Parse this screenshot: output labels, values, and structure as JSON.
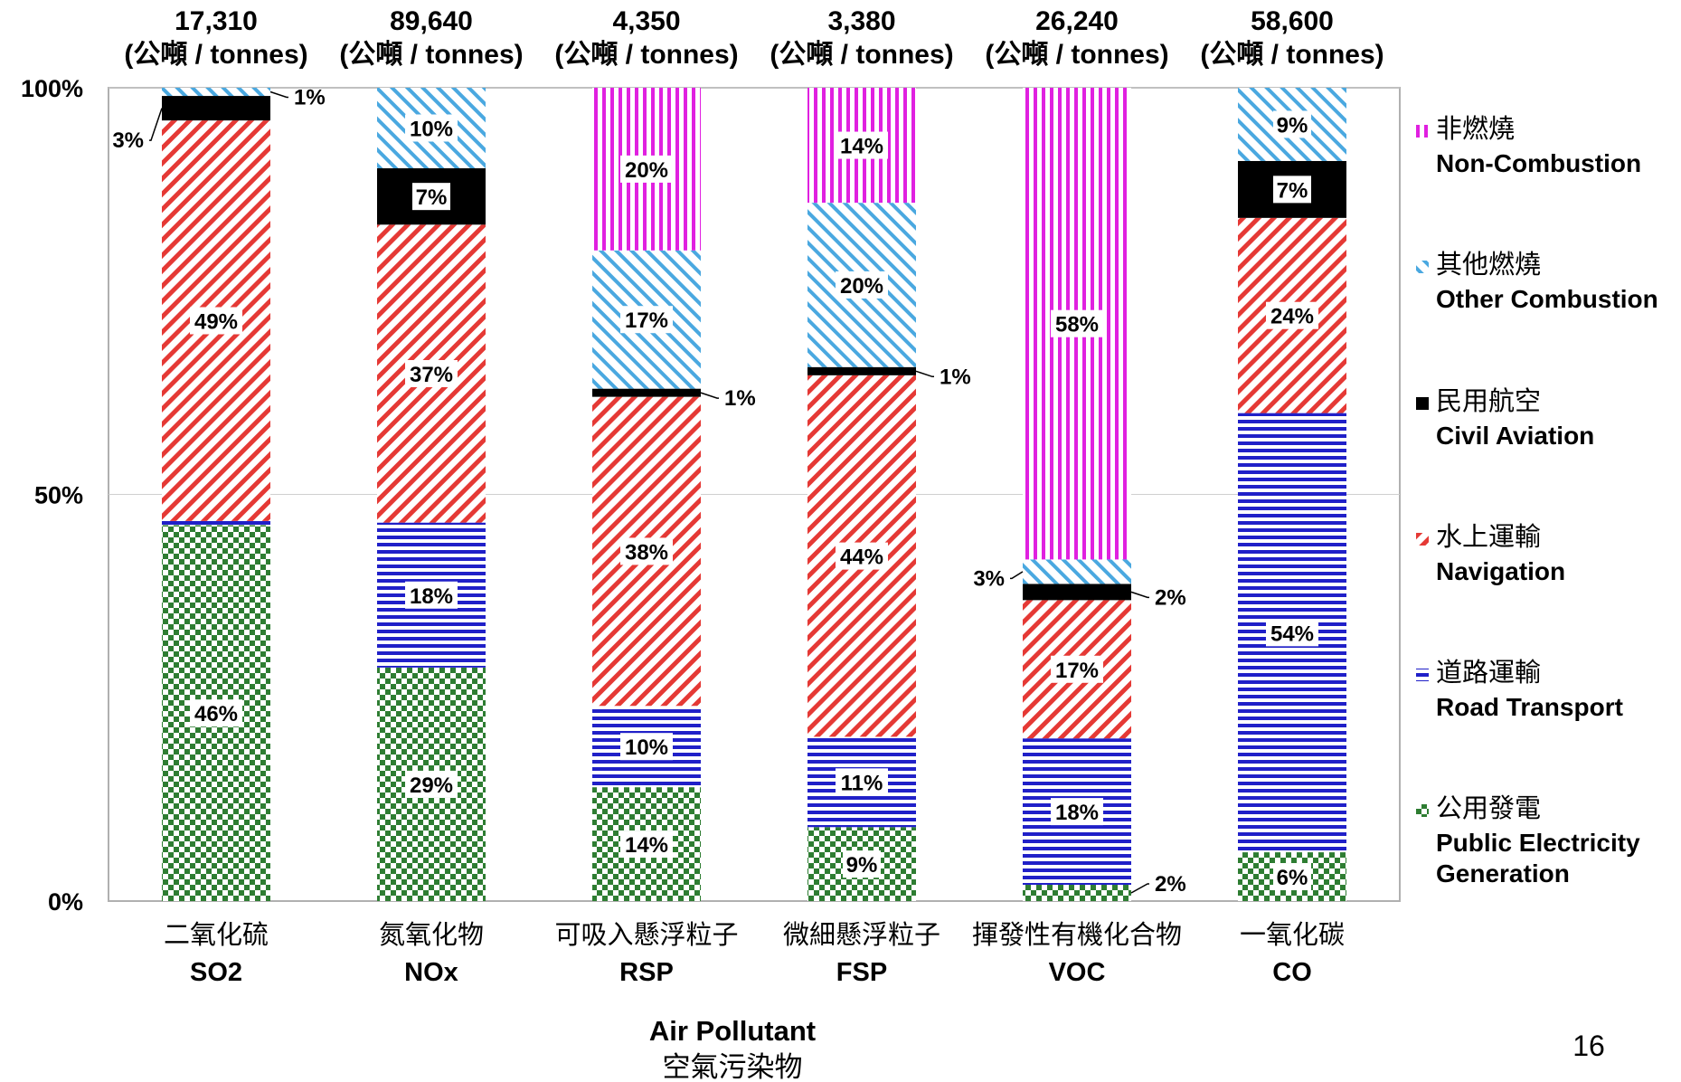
{
  "chart_data": {
    "type": "bar",
    "stacked": true,
    "normalized": true,
    "categories_zh": [
      "二氧化硫",
      "氮氧化物",
      "可吸入懸浮粒子",
      "微細懸浮粒子",
      "揮發性有機化合物",
      "一氧化碳"
    ],
    "categories": [
      "SO2",
      "NOx",
      "RSP",
      "FSP",
      "VOC",
      "CO"
    ],
    "totals": [
      "17,310",
      "89,640",
      "4,350",
      "3,380",
      "26,240",
      "58,600"
    ],
    "total_unit": "(公噸 / tonnes)",
    "y_ticks": [
      "0%",
      "50%",
      "100%"
    ],
    "ylim": [
      0,
      100
    ],
    "xlabel": "Air Pollutant",
    "xlabel_zh": "空氣污染物",
    "series": [
      {
        "name": "Public Electricity Generation",
        "name_zh": "公用發電",
        "color": "#2e7d32",
        "values": [
          46,
          29,
          14,
          9,
          2,
          6
        ],
        "labels": [
          "46%",
          "29%",
          "14%",
          "9%",
          "2%",
          "6%"
        ]
      },
      {
        "name": "Road Transport",
        "name_zh": "道路運輸",
        "color": "#2020c8",
        "values": [
          0.5,
          18,
          10,
          11,
          18,
          54
        ],
        "labels": [
          "",
          "18%",
          "10%",
          "11%",
          "18%",
          "54%"
        ]
      },
      {
        "name": "Navigation",
        "name_zh": "水上運輸",
        "color": "#e53935",
        "values": [
          49,
          37,
          38,
          44,
          17,
          24
        ],
        "labels": [
          "49%",
          "37%",
          "38%",
          "44%",
          "17%",
          "24%"
        ]
      },
      {
        "name": "Civil Aviation",
        "name_zh": "民用航空",
        "color": "#000000",
        "values": [
          3,
          7,
          1,
          1,
          2,
          7
        ],
        "labels": [
          "3%",
          "7%",
          "1%",
          "1%",
          "2%",
          "7%"
        ]
      },
      {
        "name": "Other Combustion",
        "name_zh": "其他燃燒",
        "color": "#4aa8e0",
        "values": [
          1,
          10,
          17,
          20,
          3,
          9
        ],
        "labels": [
          "1%",
          "10%",
          "17%",
          "20%",
          "3%",
          "9%"
        ]
      },
      {
        "name": "Non-Combustion",
        "name_zh": "非燃燒",
        "color": "#e020e0",
        "values": [
          0,
          0,
          20,
          14,
          58,
          0
        ],
        "labels": [
          "",
          "",
          "20%",
          "14%",
          "58%",
          ""
        ]
      }
    ],
    "legend": {
      "placement": "right",
      "order": [
        5,
        4,
        3,
        2,
        1,
        0
      ]
    }
  },
  "page_number": "16"
}
